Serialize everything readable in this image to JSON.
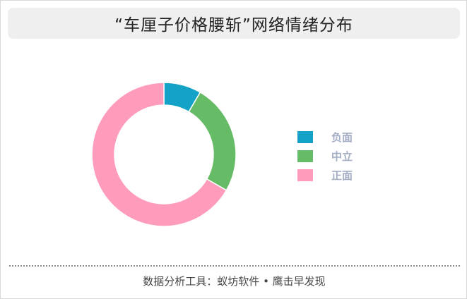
{
  "title": "“车厘子价格腰斩”网络情绪分布",
  "chart_data": {
    "type": "pie",
    "donut": true,
    "categories": [
      "负面",
      "中立",
      "正面"
    ],
    "values": [
      8.4,
      24.9,
      66.7
    ],
    "colors": [
      "#14a3c7",
      "#66bb66",
      "#ff9bbb"
    ],
    "legend_position": "right"
  },
  "footer": "数据分析工具：蚁坊软件 • 鹰击早发现"
}
